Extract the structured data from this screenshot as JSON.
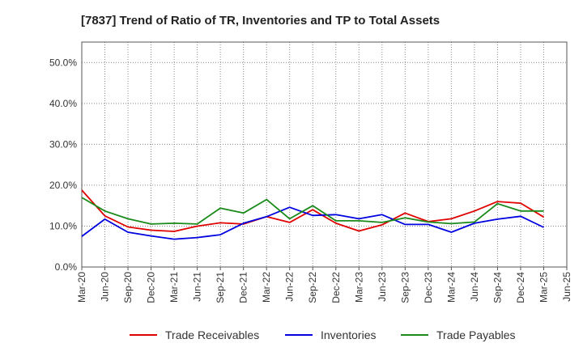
{
  "chart_data": {
    "type": "line",
    "title": "[7837]  Trend of Ratio of TR, Inventories and TP to Total Assets",
    "xlabel": "",
    "ylabel": "",
    "ylim": [
      0,
      0.55
    ],
    "yticks": [
      "0.0%",
      "10.0%",
      "20.0%",
      "30.0%",
      "40.0%",
      "50.0%"
    ],
    "ytick_values": [
      0,
      0.1,
      0.2,
      0.3,
      0.4,
      0.5
    ],
    "x_tick_labels": [
      "Mar-20",
      "Jun-20",
      "Sep-20",
      "Dec-20",
      "Mar-21",
      "Jun-21",
      "Sep-21",
      "Dec-21",
      "Mar-22",
      "Jun-22",
      "Sep-22",
      "Dec-22",
      "Mar-23",
      "Jun-23",
      "Sep-23",
      "Dec-23",
      "Mar-24",
      "Jun-24",
      "Sep-24",
      "Dec-24",
      "Mar-25",
      "Jun-25"
    ],
    "x": [
      "Mar-20",
      "Jun-20",
      "Sep-20",
      "Dec-20",
      "Mar-21",
      "Jun-21",
      "Sep-21",
      "Dec-21",
      "Mar-22",
      "Jun-22",
      "Sep-22",
      "Dec-22",
      "Mar-23",
      "Jun-23",
      "Sep-23",
      "Dec-23",
      "Mar-24",
      "Jun-24",
      "Sep-24",
      "Dec-24",
      "Mar-25"
    ],
    "grid": true,
    "legend_position": "bottom",
    "series": [
      {
        "name": "Trade Receivables",
        "color": "#e00000",
        "values": [
          0.188,
          0.125,
          0.098,
          0.09,
          0.087,
          0.1,
          0.108,
          0.105,
          0.123,
          0.109,
          0.14,
          0.107,
          0.088,
          0.103,
          0.132,
          0.111,
          0.118,
          0.137,
          0.16,
          0.156,
          0.122
        ]
      },
      {
        "name": "Inventories",
        "color": "#0000e0",
        "values": [
          0.075,
          0.117,
          0.085,
          0.076,
          0.068,
          0.072,
          0.079,
          0.107,
          0.123,
          0.146,
          0.126,
          0.128,
          0.118,
          0.128,
          0.104,
          0.104,
          0.085,
          0.107,
          0.117,
          0.124,
          0.097
        ]
      },
      {
        "name": "Trade Payables",
        "color": "#1a8a1a",
        "values": [
          0.17,
          0.137,
          0.118,
          0.105,
          0.107,
          0.105,
          0.144,
          0.132,
          0.165,
          0.118,
          0.15,
          0.113,
          0.113,
          0.109,
          0.12,
          0.11,
          0.106,
          0.11,
          0.155,
          0.137,
          0.137
        ]
      }
    ]
  }
}
